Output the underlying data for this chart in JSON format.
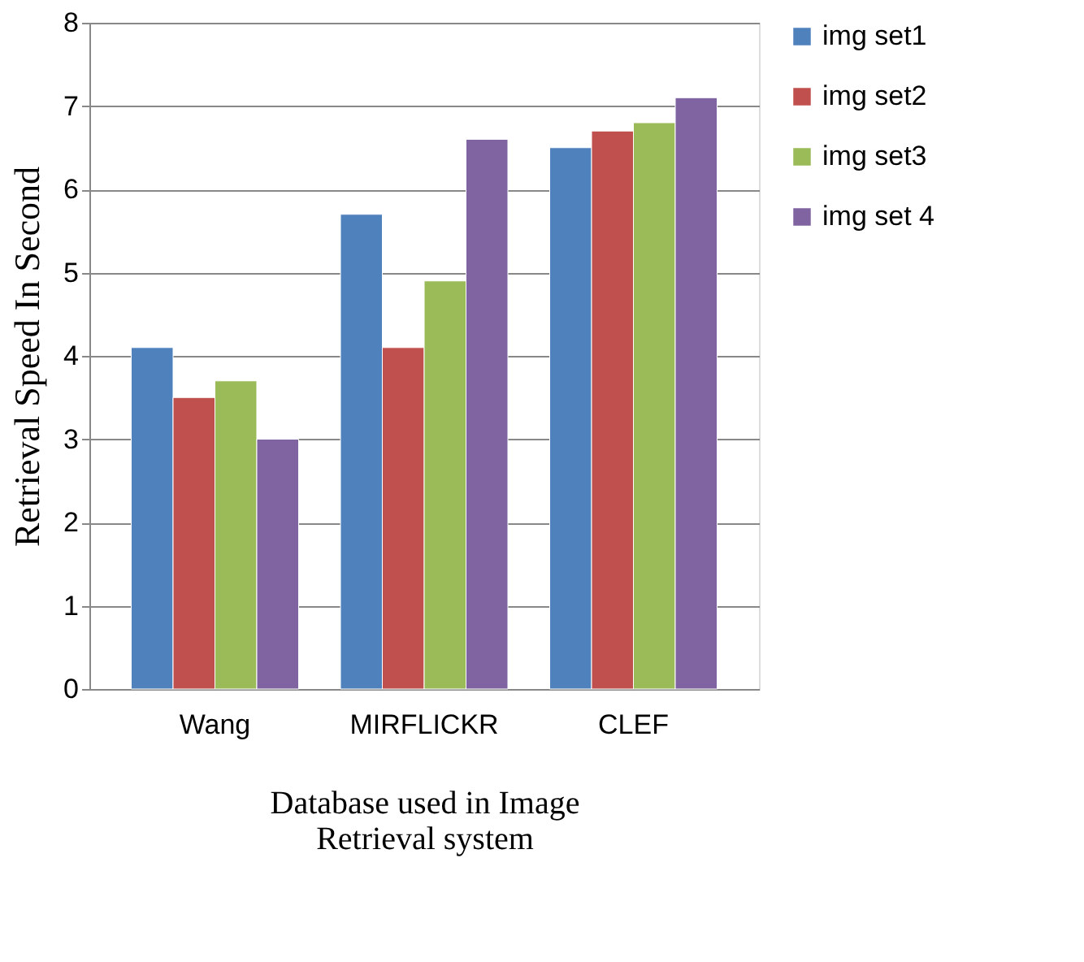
{
  "chart_data": {
    "type": "bar",
    "categories": [
      "Wang",
      "MIRFLICKR",
      "CLEF"
    ],
    "series": [
      {
        "name": "img set1",
        "color": "#4f81bd",
        "values": [
          4.1,
          5.7,
          6.5
        ]
      },
      {
        "name": "img set2",
        "color": "#c0504d",
        "values": [
          3.5,
          4.1,
          6.7
        ]
      },
      {
        "name": "img set3",
        "color": "#9bbb59",
        "values": [
          3.7,
          4.9,
          6.8
        ]
      },
      {
        "name": "img set 4",
        "color": "#8064a2",
        "values": [
          3.0,
          6.6,
          7.1
        ]
      }
    ],
    "xlabel": "Database  used in Image Retrieval system",
    "ylabel": "Retrieval Speed In Second",
    "ylim": [
      0,
      8
    ],
    "yticks": [
      0,
      1,
      2,
      3,
      4,
      5,
      6,
      7,
      8
    ],
    "grid": "y",
    "legend": "right"
  }
}
